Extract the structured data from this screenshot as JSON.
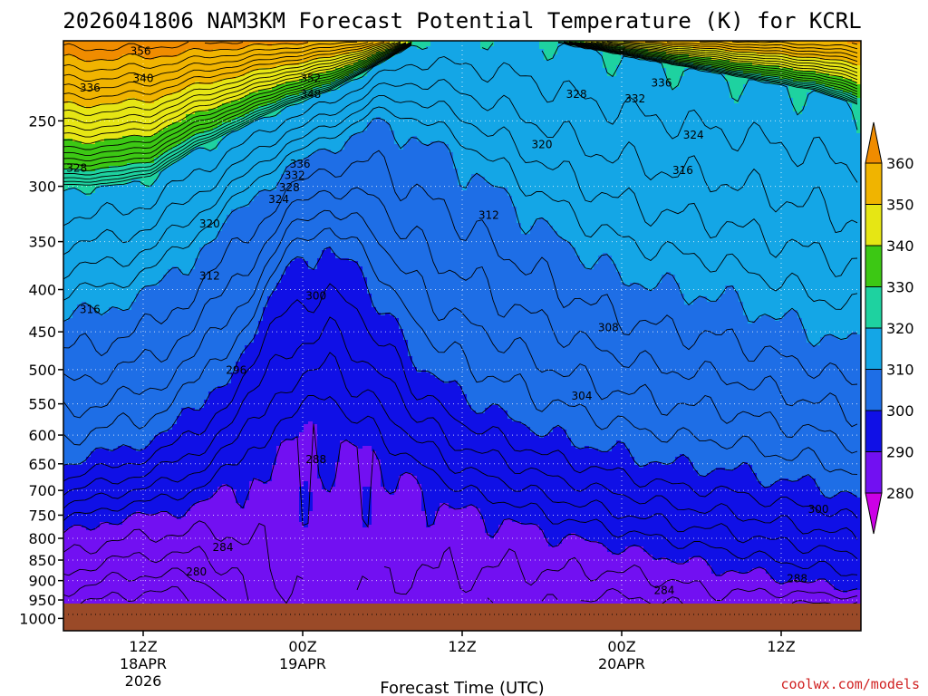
{
  "chart_data": {
    "type": "heatmap",
    "title": "2026041806 NAM3KM Forecast Potential Temperature (K) for KCRL",
    "xlabel": "Forecast Time (UTC)",
    "ylabel": "",
    "x_ticks": [
      {
        "hour": 6,
        "lines": [
          "12Z",
          "18APR",
          "2026"
        ]
      },
      {
        "hour": 18,
        "lines": [
          "00Z",
          "19APR"
        ]
      },
      {
        "hour": 30,
        "lines": [
          "12Z"
        ]
      },
      {
        "hour": 42,
        "lines": [
          "00Z",
          "20APR"
        ]
      },
      {
        "hour": 54,
        "lines": [
          "12Z"
        ]
      }
    ],
    "x_range_hours": [
      0,
      60
    ],
    "y_ticks": [
      250,
      300,
      350,
      400,
      450,
      500,
      550,
      600,
      650,
      700,
      750,
      800,
      850,
      900,
      950,
      1000
    ],
    "y_range_hpa": [
      200,
      1035
    ],
    "y_scale": "log",
    "grid": "dotted",
    "colorbar": {
      "levels": [
        280,
        290,
        300,
        310,
        320,
        330,
        340,
        350,
        360
      ],
      "labels": [
        "280",
        "290",
        "300",
        "310",
        "320",
        "330",
        "340",
        "350",
        "360"
      ],
      "colors": [
        "#d200f0",
        "#7210f2",
        "#1010e6",
        "#1e6ee6",
        "#14a6e6",
        "#1ed2a0",
        "#3cc814",
        "#e6e614",
        "#f0b400",
        "#f08c00",
        "#cc00e6"
      ]
    },
    "ground_color": "#9a4a28",
    "field_model": {
      "sfc_theta": [
        282,
        281,
        280,
        281,
        285,
        288,
        289,
        288,
        287,
        287,
        286,
        286,
        285,
        285,
        286,
        287,
        286,
        285,
        285
      ],
      "p_290": [
        790,
        760,
        750,
        730,
        690,
        610,
        590,
        640,
        690,
        740,
        760,
        790,
        810,
        830,
        850,
        870,
        890,
        910,
        925
      ],
      "p_300": [
        650,
        630,
        610,
        560,
        480,
        380,
        350,
        400,
        490,
        540,
        570,
        600,
        620,
        640,
        655,
        660,
        680,
        690,
        720
      ],
      "p_310": [
        430,
        420,
        400,
        360,
        320,
        285,
        270,
        250,
        260,
        280,
        310,
        340,
        370,
        390,
        400,
        410,
        430,
        450,
        470
      ],
      "p_320": [
        300,
        300,
        292,
        270,
        255,
        240,
        230,
        215,
        200,
        198,
        196,
        200,
        205,
        210,
        215,
        220,
        225,
        230,
        240
      ]
    },
    "contour_labels": [
      {
        "text": "356",
        "t": 5.8,
        "p": 206
      },
      {
        "text": "340",
        "t": 6.0,
        "p": 222
      },
      {
        "text": "336",
        "t": 2.0,
        "p": 228
      },
      {
        "text": "352",
        "t": 18.6,
        "p": 222
      },
      {
        "text": "348",
        "t": 18.6,
        "p": 232
      },
      {
        "text": "336",
        "t": 17.8,
        "p": 282
      },
      {
        "text": "332",
        "t": 17.4,
        "p": 291
      },
      {
        "text": "328",
        "t": 17.0,
        "p": 301
      },
      {
        "text": "324",
        "t": 16.2,
        "p": 311
      },
      {
        "text": "320",
        "t": 11.0,
        "p": 333
      },
      {
        "text": "312",
        "t": 11.0,
        "p": 385
      },
      {
        "text": "316",
        "t": 2.0,
        "p": 423
      },
      {
        "text": "328",
        "t": 1.0,
        "p": 285
      },
      {
        "text": "300",
        "t": 19.0,
        "p": 407
      },
      {
        "text": "296",
        "t": 13.0,
        "p": 501
      },
      {
        "text": "288",
        "t": 19.0,
        "p": 642
      },
      {
        "text": "284",
        "t": 12.0,
        "p": 820
      },
      {
        "text": "280",
        "t": 10.0,
        "p": 878
      },
      {
        "text": "328",
        "t": 38.6,
        "p": 232
      },
      {
        "text": "332",
        "t": 43.0,
        "p": 235
      },
      {
        "text": "336",
        "t": 45.0,
        "p": 225
      },
      {
        "text": "324",
        "t": 47.4,
        "p": 260
      },
      {
        "text": "320",
        "t": 36.0,
        "p": 267
      },
      {
        "text": "316",
        "t": 46.6,
        "p": 287
      },
      {
        "text": "312",
        "t": 32.0,
        "p": 325
      },
      {
        "text": "308",
        "t": 41.0,
        "p": 445
      },
      {
        "text": "304",
        "t": 39.0,
        "p": 538
      },
      {
        "text": "300",
        "t": 56.8,
        "p": 738
      },
      {
        "text": "288",
        "t": 55.2,
        "p": 895
      },
      {
        "text": "284",
        "t": 45.2,
        "p": 925
      }
    ],
    "credit": "coolwx.com/models",
    "credit_color": "#d02020"
  }
}
